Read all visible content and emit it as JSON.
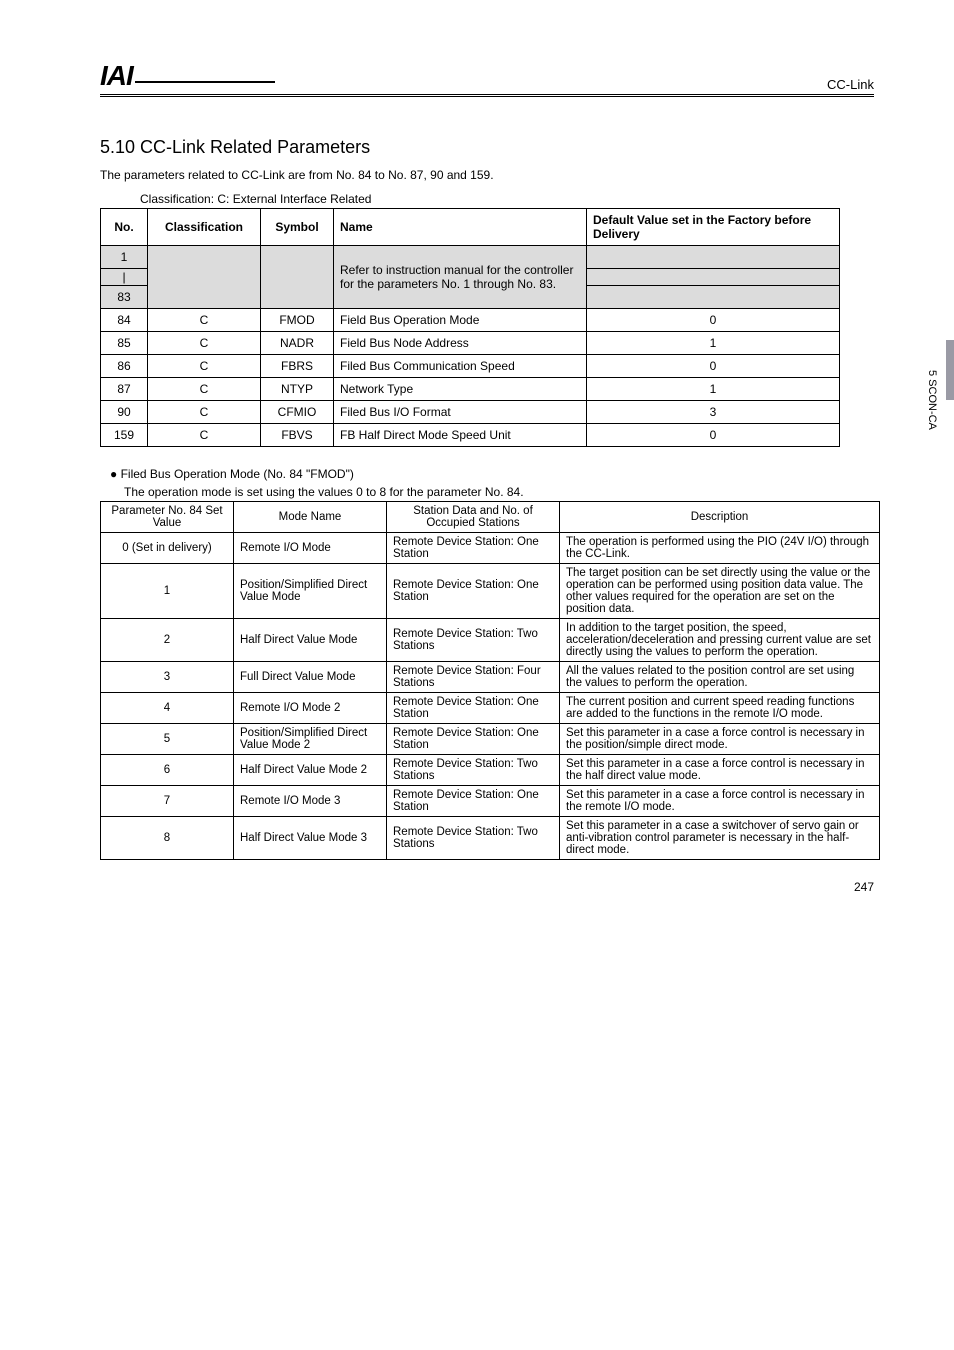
{
  "header": {
    "logo_text": "IAI",
    "right_text": "CC-Link"
  },
  "section": {
    "title": "5.10 CC-Link Related Parameters",
    "intro": "The parameters related to CC-Link are from No. 84 to No. 87, 90 and 159.",
    "table1_caption": "Classification: C: External Interface Related"
  },
  "table1": {
    "headers": {
      "no": "No.",
      "classification": "Classification",
      "symbol": "Symbol",
      "name": "Name",
      "default": "Default Value set in the Factory before Delivery"
    },
    "top_row_no1": "1",
    "top_row_no2": "|",
    "top_row_no3": "83",
    "refer_text": "Refer to instruction manual for the controller for the parameters No. 1 through No. 83.",
    "rows": [
      {
        "no": "84",
        "cls": "C",
        "sym": "FMOD",
        "name": "Field Bus Operation Mode",
        "def": "0"
      },
      {
        "no": "85",
        "cls": "C",
        "sym": "NADR",
        "name": "Field Bus Node Address",
        "def": "1"
      },
      {
        "no": "86",
        "cls": "C",
        "sym": "FBRS",
        "name": "Filed Bus Communication Speed",
        "def": "0"
      },
      {
        "no": "87",
        "cls": "C",
        "sym": "NTYP",
        "name": "Network Type",
        "def": "1"
      },
      {
        "no": "90",
        "cls": "C",
        "sym": "CFMIO",
        "name": "Filed Bus I/O Format",
        "def": "3"
      },
      {
        "no": "159",
        "cls": "C",
        "sym": "FBVS",
        "name": "FB Half Direct Mode Speed Unit",
        "def": "0"
      }
    ]
  },
  "bullet1": {
    "title": "● Filed Bus Operation Mode (No. 84 \"FMOD\")",
    "desc": "The operation mode is set using the values 0 to 8 for the parameter No. 84."
  },
  "table2": {
    "headers": {
      "c1": "Parameter No. 84 Set Value",
      "c2": "Mode Name",
      "c3": "Station Data and No. of Occupied Stations",
      "c4": "Description"
    },
    "rows": [
      {
        "v": "0 (Set in delivery)",
        "mode": "Remote I/O Mode",
        "st": "Remote Device Station: One Station",
        "desc": "The operation is performed using the PIO (24V I/O) through the CC-Link."
      },
      {
        "v": "1",
        "mode": "Position/Simplified Direct Value Mode",
        "st": "Remote Device Station: One Station",
        "desc": "The target position can be set directly using the value or the operation can be performed using position data value. The other values required for the operation are set on the position data."
      },
      {
        "v": "2",
        "mode": "Half Direct Value Mode",
        "st": "Remote Device Station: Two Stations",
        "desc": "In addition to the target position, the speed, acceleration/deceleration and pressing current value are set directly using the values to perform the operation."
      },
      {
        "v": "3",
        "mode": "Full Direct Value Mode",
        "st": "Remote Device Station: Four Stations",
        "desc": "All the values related to the position control are set using the values to perform the operation."
      },
      {
        "v": "4",
        "mode": "Remote I/O Mode 2",
        "st": "Remote Device Station: One Station",
        "desc": "The current position and current speed reading functions are added to the functions in the remote I/O mode."
      },
      {
        "v": "5",
        "mode": "Position/Simplified Direct Value Mode 2",
        "st": "Remote Device Station: One Station",
        "desc": "Set this parameter in a case a force control is necessary in the position/simple direct mode."
      },
      {
        "v": "6",
        "mode": "Half Direct Value Mode 2",
        "st": "Remote Device Station: Two Stations",
        "desc": "Set this parameter in a case a force control is necessary in the half direct value mode."
      },
      {
        "v": "7",
        "mode": "Remote I/O Mode 3",
        "st": "Remote Device Station: One Station",
        "desc": "Set this parameter in a case a force control is necessary in the remote I/O mode."
      },
      {
        "v": "8",
        "mode": "Half Direct Value Mode 3",
        "st": "Remote Device Station: Two Stations",
        "desc": "Set this parameter in a case a switchover of servo gain or anti-vibration control parameter is necessary in the half-direct mode."
      }
    ]
  },
  "side_tab": "5  SCON-CA",
  "page_number": "247",
  "colors": {
    "shaded_bg": "#dcdcdc",
    "side_bar": "#9a9aa5",
    "text": "#000000",
    "background": "#ffffff"
  }
}
